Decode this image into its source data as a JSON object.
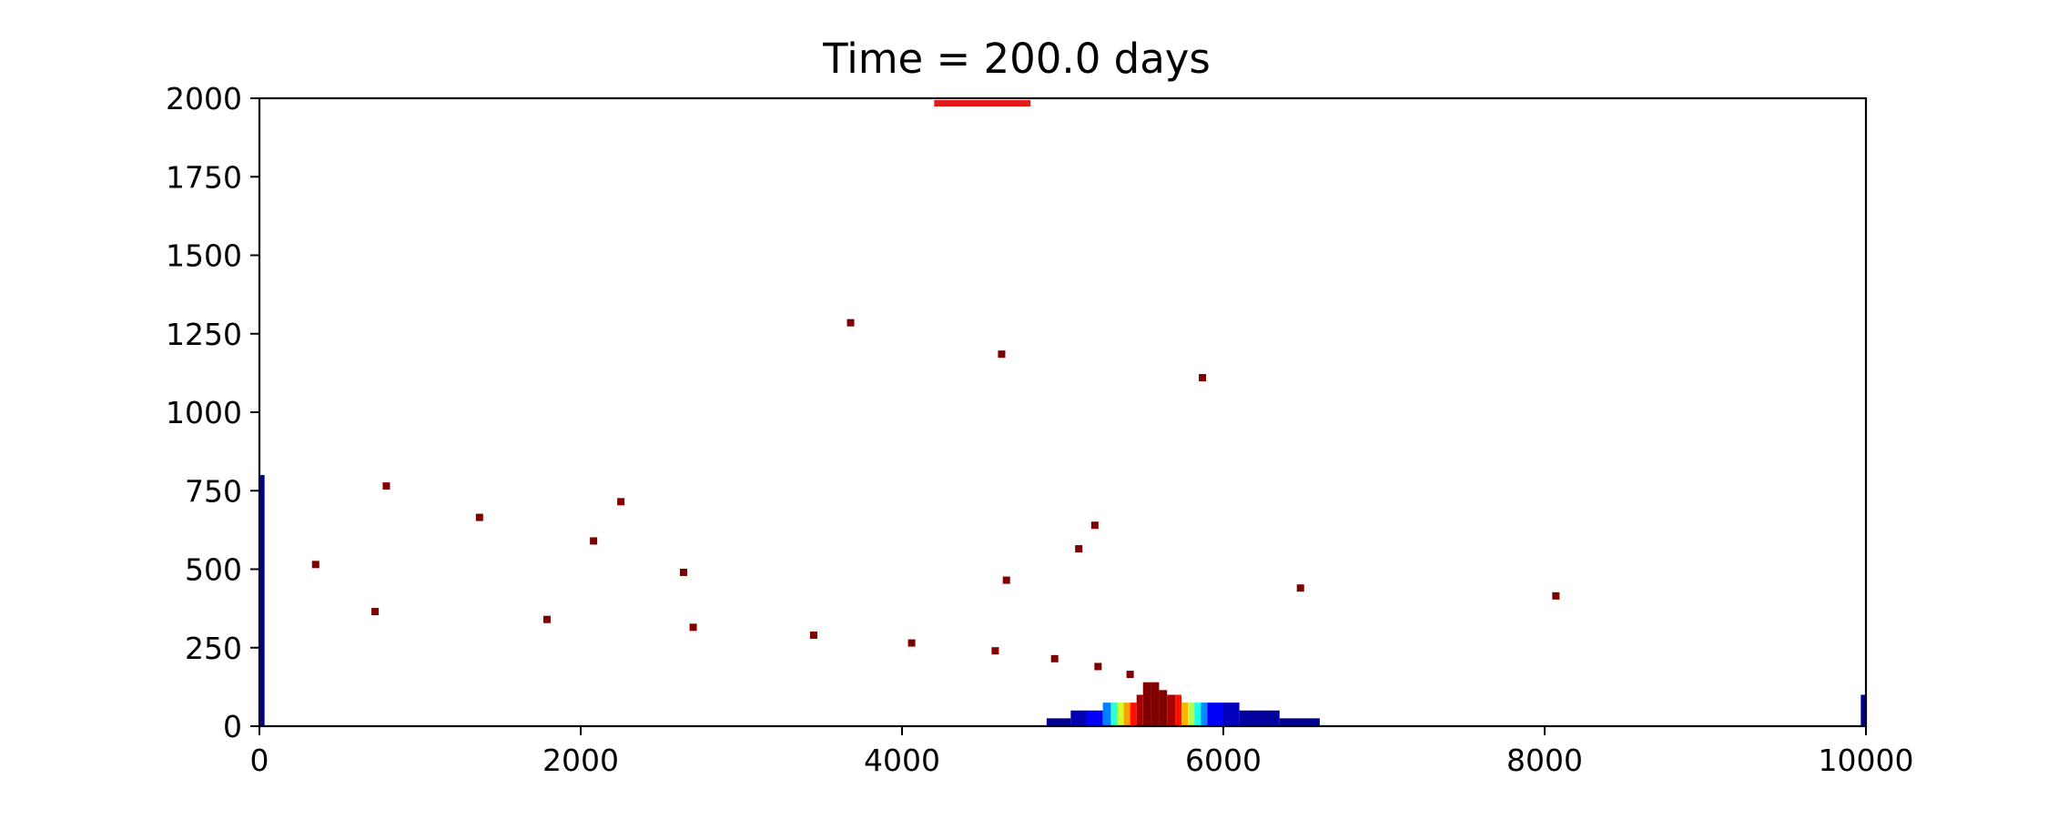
{
  "chart_data": {
    "type": "heatmap",
    "title": "Time = 200.0 days",
    "xlabel": "",
    "ylabel": "",
    "xlim": [
      0,
      10000
    ],
    "ylim": [
      0,
      2000
    ],
    "xticks": [
      0,
      2000,
      4000,
      6000,
      8000,
      10000
    ],
    "yticks": [
      0,
      250,
      500,
      750,
      1000,
      1250,
      1500,
      1750,
      2000
    ],
    "xtick_labels": [
      "0",
      "2000",
      "4000",
      "6000",
      "8000",
      "10000"
    ],
    "ytick_labels": [
      "0",
      "250",
      "500",
      "750",
      "1000",
      "1250",
      "1500",
      "1750",
      "2000"
    ],
    "grid": false,
    "colormap": "jet",
    "colors": {
      "particle": "#7f0000",
      "source_bar": "#e31a1c",
      "edge_strip": "#00008b"
    },
    "source_bar": {
      "x_start": 4200,
      "x_end": 4800,
      "y": 1985
    },
    "edge_strips": [
      {
        "x": 15,
        "y_top": 800
      },
      {
        "x": 9985,
        "y_top": 100
      }
    ],
    "plume_columns": [
      {
        "x0": 4900,
        "x1": 5050,
        "top": 25,
        "v": 0.02
      },
      {
        "x0": 5050,
        "x1": 5150,
        "top": 50,
        "v": 0.05
      },
      {
        "x0": 5150,
        "x1": 5250,
        "top": 50,
        "v": 0.12
      },
      {
        "x0": 5250,
        "x1": 5300,
        "top": 75,
        "v": 0.25
      },
      {
        "x0": 5300,
        "x1": 5340,
        "top": 75,
        "v": 0.42
      },
      {
        "x0": 5340,
        "x1": 5380,
        "top": 75,
        "v": 0.58
      },
      {
        "x0": 5380,
        "x1": 5420,
        "top": 75,
        "v": 0.72
      },
      {
        "x0": 5420,
        "x1": 5460,
        "top": 75,
        "v": 0.86
      },
      {
        "x0": 5460,
        "x1": 5500,
        "top": 100,
        "v": 0.96
      },
      {
        "x0": 5500,
        "x1": 5550,
        "top": 140,
        "v": 1.0
      },
      {
        "x0": 5550,
        "x1": 5600,
        "top": 140,
        "v": 1.0
      },
      {
        "x0": 5600,
        "x1": 5650,
        "top": 115,
        "v": 1.0
      },
      {
        "x0": 5650,
        "x1": 5700,
        "top": 100,
        "v": 0.96
      },
      {
        "x0": 5700,
        "x1": 5740,
        "top": 100,
        "v": 0.86
      },
      {
        "x0": 5740,
        "x1": 5780,
        "top": 75,
        "v": 0.7
      },
      {
        "x0": 5780,
        "x1": 5820,
        "top": 75,
        "v": 0.55
      },
      {
        "x0": 5820,
        "x1": 5860,
        "top": 75,
        "v": 0.4
      },
      {
        "x0": 5860,
        "x1": 5900,
        "top": 75,
        "v": 0.26
      },
      {
        "x0": 5900,
        "x1": 6000,
        "top": 75,
        "v": 0.12
      },
      {
        "x0": 6000,
        "x1": 6100,
        "top": 75,
        "v": 0.06
      },
      {
        "x0": 6100,
        "x1": 6350,
        "top": 50,
        "v": 0.03
      },
      {
        "x0": 6350,
        "x1": 6600,
        "top": 25,
        "v": 0.02
      }
    ],
    "particles": [
      {
        "x": 3680,
        "y": 1285
      },
      {
        "x": 4620,
        "y": 1185
      },
      {
        "x": 5870,
        "y": 1110
      },
      {
        "x": 790,
        "y": 765
      },
      {
        "x": 2250,
        "y": 715
      },
      {
        "x": 1370,
        "y": 665
      },
      {
        "x": 5200,
        "y": 640
      },
      {
        "x": 2080,
        "y": 590
      },
      {
        "x": 5100,
        "y": 565
      },
      {
        "x": 350,
        "y": 515
      },
      {
        "x": 2640,
        "y": 490
      },
      {
        "x": 4650,
        "y": 465
      },
      {
        "x": 6480,
        "y": 440
      },
      {
        "x": 8070,
        "y": 415
      },
      {
        "x": 720,
        "y": 365
      },
      {
        "x": 1790,
        "y": 340
      },
      {
        "x": 2700,
        "y": 315
      },
      {
        "x": 3450,
        "y": 290
      },
      {
        "x": 4060,
        "y": 265
      },
      {
        "x": 4580,
        "y": 240
      },
      {
        "x": 4950,
        "y": 215
      },
      {
        "x": 5220,
        "y": 190
      },
      {
        "x": 5420,
        "y": 165
      }
    ]
  }
}
